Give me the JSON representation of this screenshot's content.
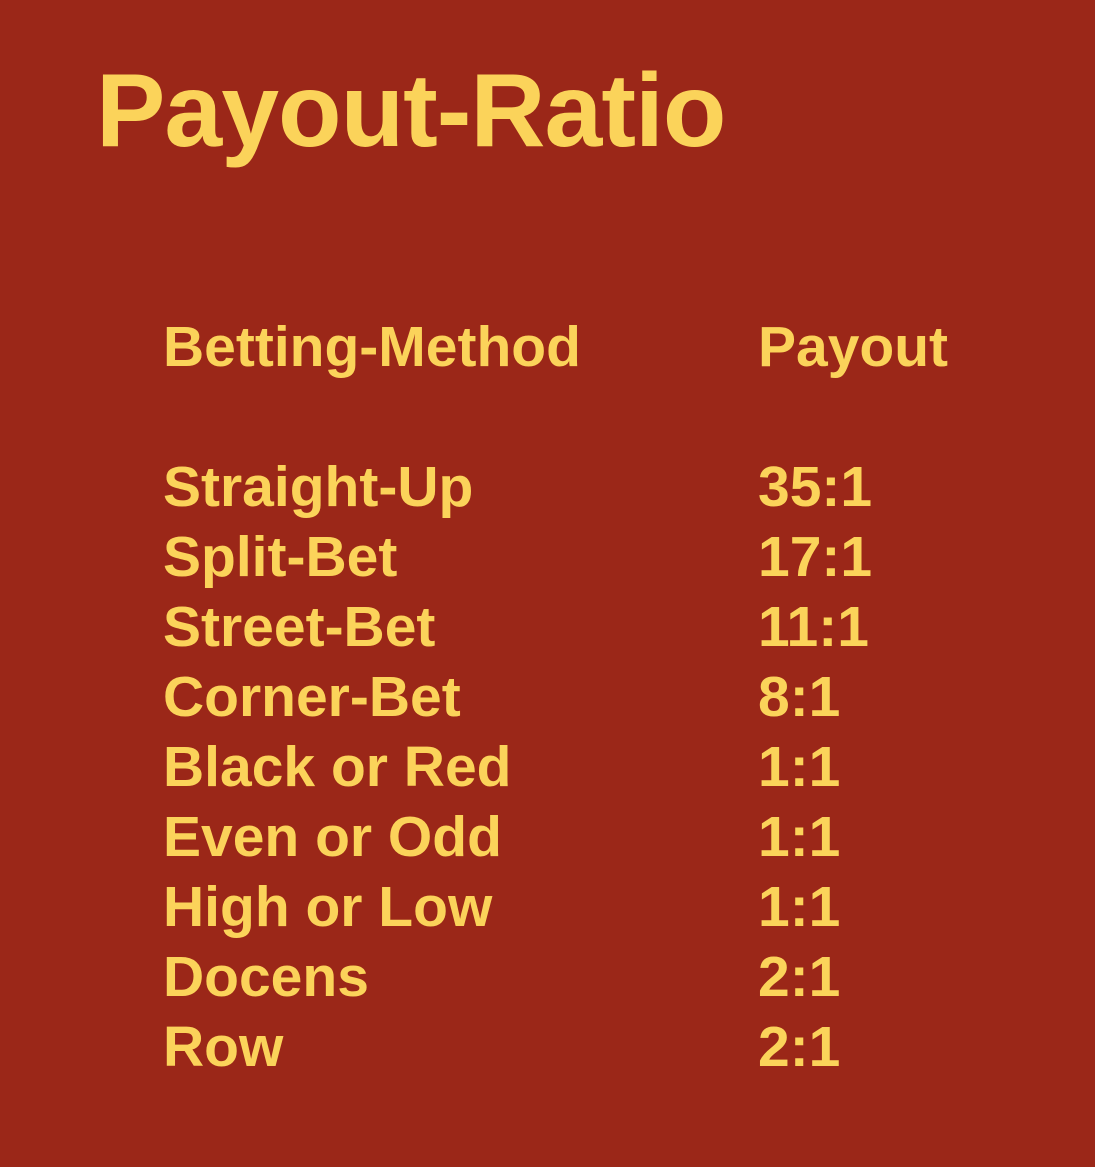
{
  "title": "Payout-Ratio",
  "table": {
    "headers": {
      "method": "Betting-Method",
      "payout": "Payout"
    },
    "rows": [
      {
        "method": "Straight-Up",
        "payout": "35:1"
      },
      {
        "method": "Split-Bet",
        "payout": "17:1"
      },
      {
        "method": "Street-Bet",
        "payout": "11:1"
      },
      {
        "method": "Corner-Bet",
        "payout": "8:1"
      },
      {
        "method": "Black or Red",
        "payout": "1:1"
      },
      {
        "method": "Even or Odd",
        "payout": "1:1"
      },
      {
        "method": "High or Low",
        "payout": "1:1"
      },
      {
        "method": "Docens",
        "payout": "2:1"
      },
      {
        "method": "Row",
        "payout": "2:1"
      }
    ]
  },
  "colors": {
    "background": "#9b2718",
    "text": "#fbd35a"
  }
}
